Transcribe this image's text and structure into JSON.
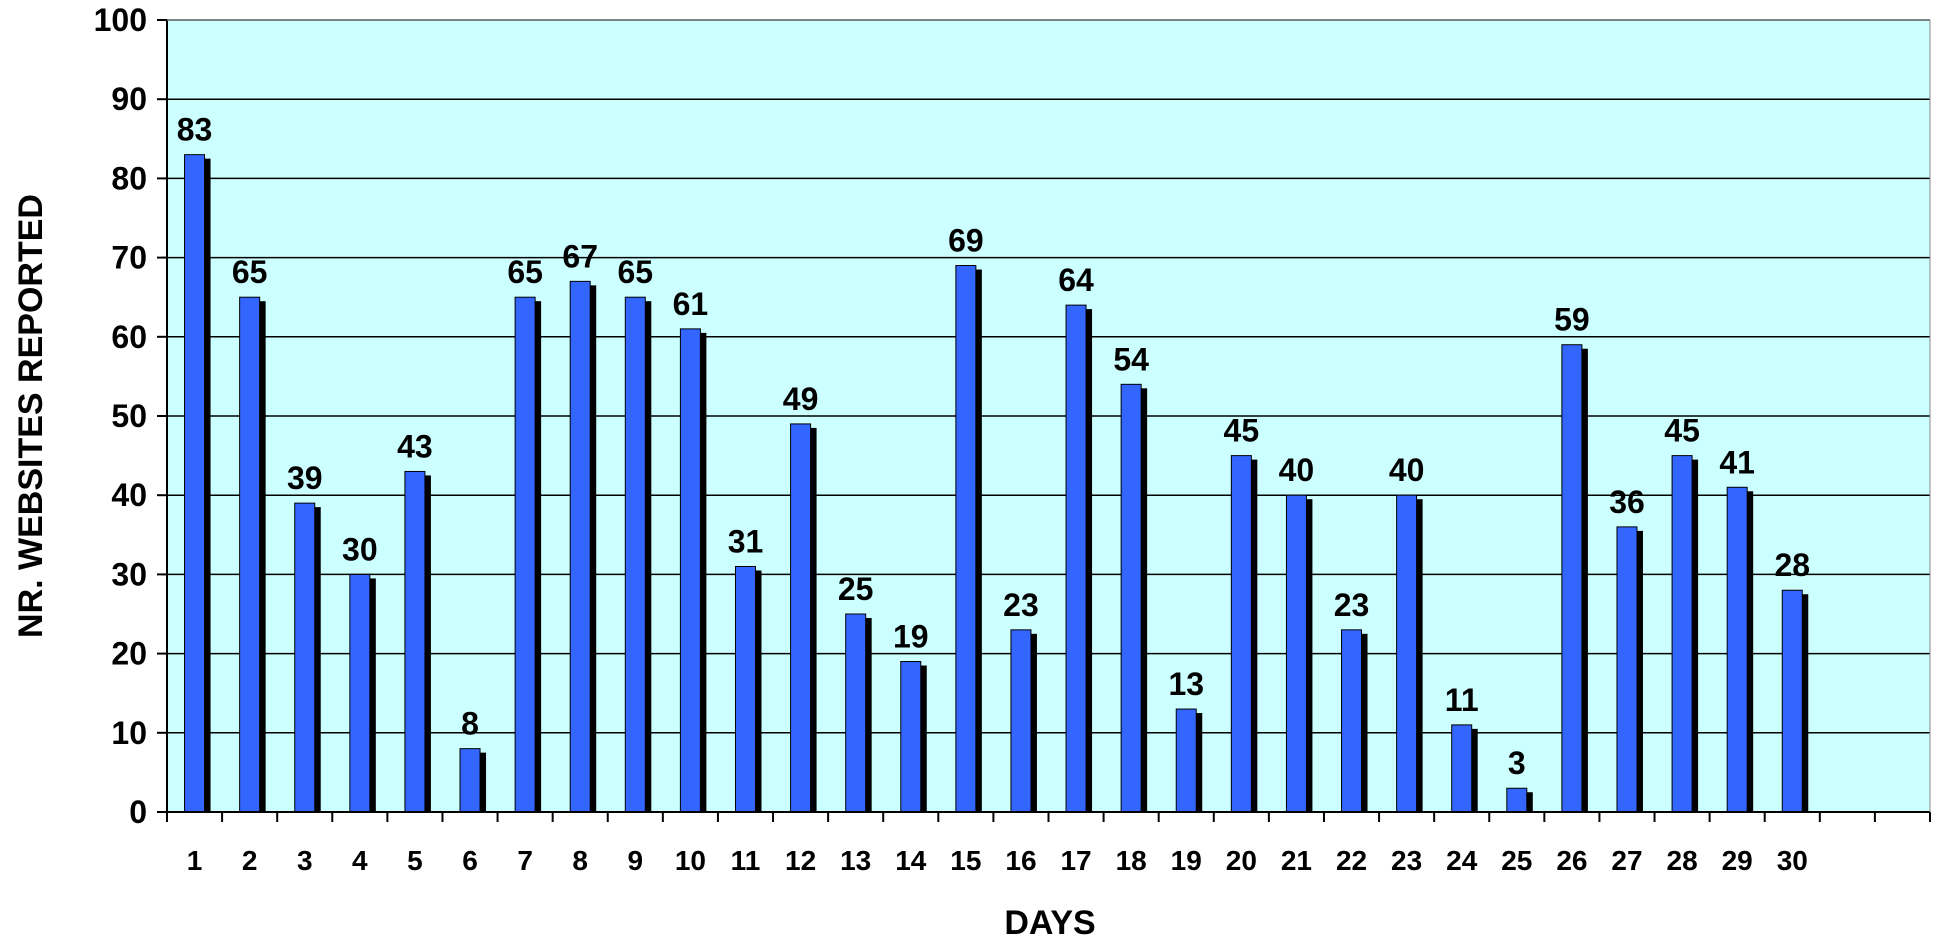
{
  "chart_data": {
    "type": "bar",
    "title": "",
    "xlabel": "DAYS",
    "ylabel": "NR. WEBSITES REPORTED",
    "ylim": [
      0,
      100
    ],
    "yticks": [
      0,
      10,
      20,
      30,
      40,
      50,
      60,
      70,
      80,
      90,
      100
    ],
    "categories": [
      "1",
      "2",
      "3",
      "4",
      "5",
      "6",
      "7",
      "8",
      "9",
      "10",
      "11",
      "12",
      "13",
      "14",
      "15",
      "16",
      "17",
      "18",
      "19",
      "20",
      "21",
      "22",
      "23",
      "24",
      "25",
      "26",
      "27",
      "28",
      "29",
      "30"
    ],
    "values": [
      83,
      65,
      39,
      30,
      43,
      8,
      65,
      67,
      65,
      61,
      31,
      49,
      25,
      19,
      69,
      23,
      64,
      54,
      13,
      45,
      40,
      23,
      40,
      11,
      3,
      59,
      36,
      45,
      41,
      28
    ],
    "grid": true,
    "legend": "none",
    "colors": {
      "plot_background": "#ccffff",
      "bar": "#3366ff",
      "bar_shadow": "#000000",
      "gridline": "#000000"
    }
  }
}
